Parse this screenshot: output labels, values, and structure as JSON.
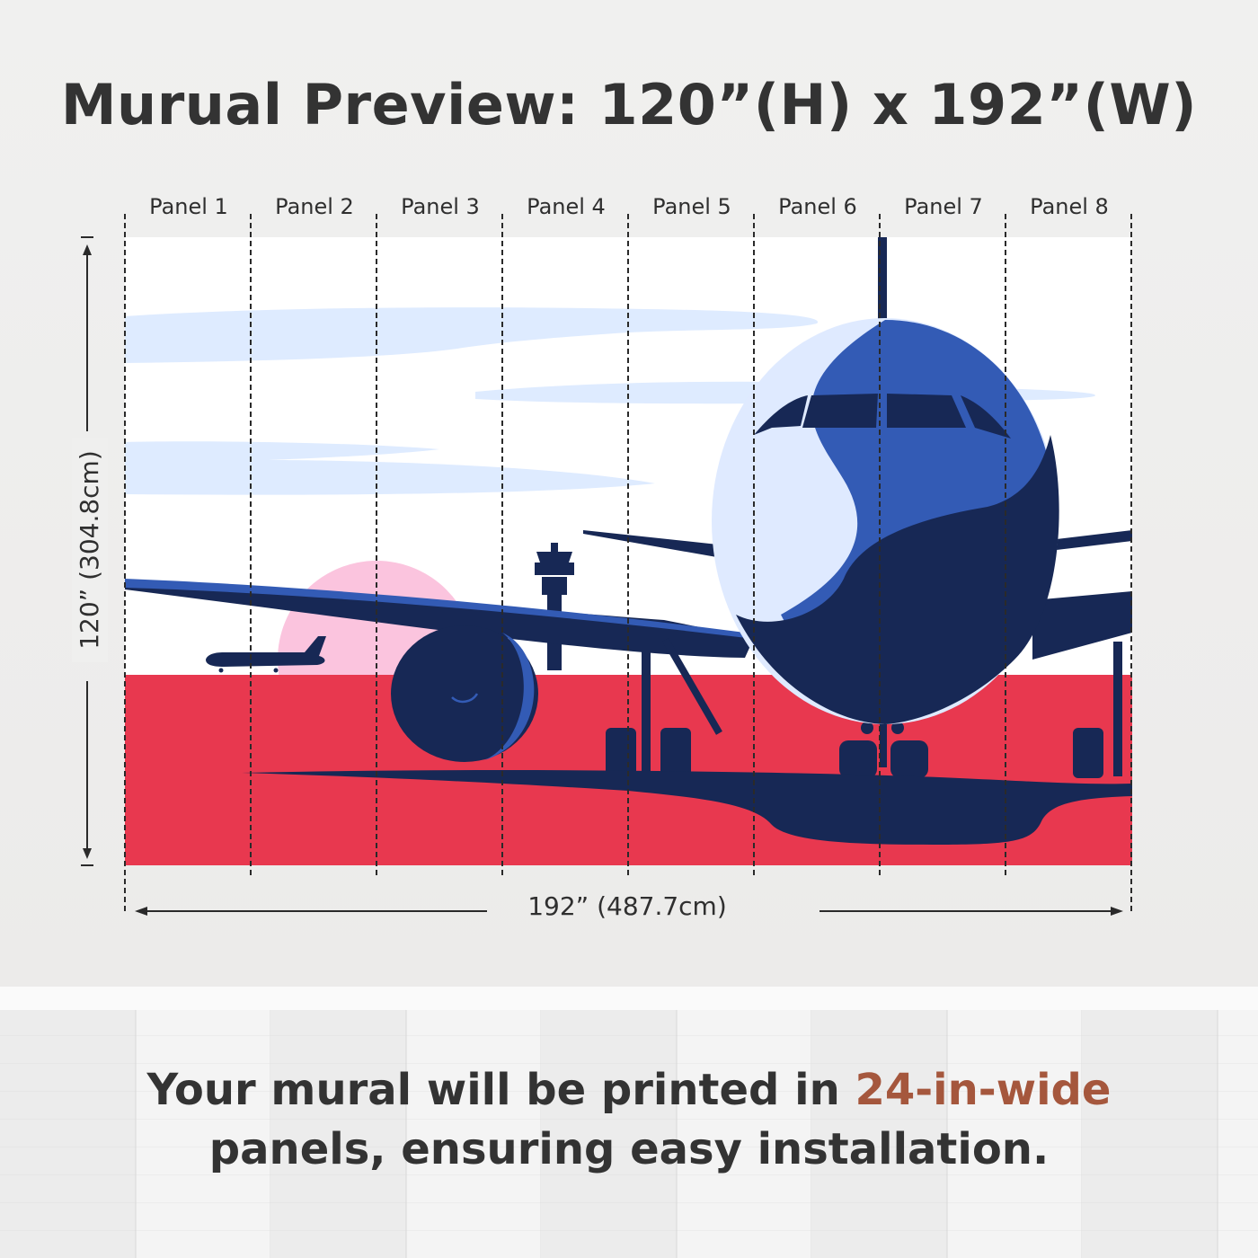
{
  "title": "Murual Preview: 120”(H) x 192”(W)",
  "panels": [
    "Panel 1",
    "Panel 2",
    "Panel 3",
    "Panel 4",
    "Panel 5",
    "Panel 6",
    "Panel 7",
    "Panel 8"
  ],
  "height_label": "120” (304.8cm)",
  "width_label": "192” (487.7cm)",
  "caption": {
    "part1": "Your mural will be printed in ",
    "highlight": "24-in-wide",
    "part2": "panels, ensuring easy installation."
  },
  "colors": {
    "sky": "#ffffff",
    "cloud": "#deebff",
    "ground": "#e8384f",
    "plane_dark": "#172855",
    "plane_blue": "#335bb5",
    "plane_light": "#dfeaff",
    "sun": "#fbc4de",
    "accent_text": "#a5573d"
  }
}
